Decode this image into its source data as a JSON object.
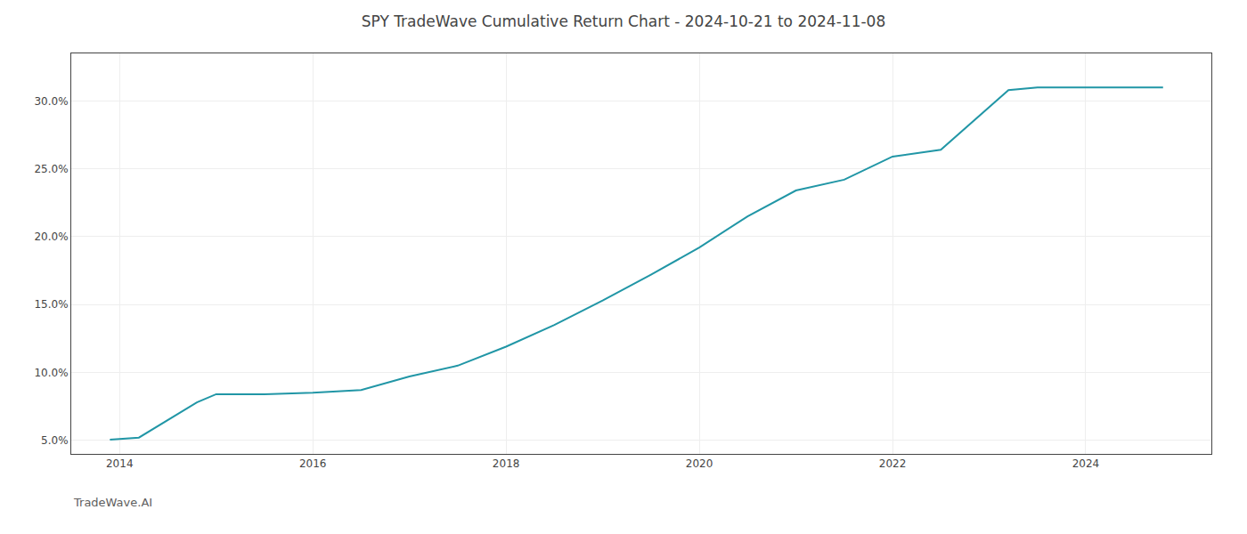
{
  "chart_data": {
    "type": "line",
    "title": "SPY TradeWave Cumulative Return Chart - 2024-10-21 to 2024-11-08",
    "annotations": [
      "TradeWave.AI"
    ],
    "x": [
      2013.9,
      2014.2,
      2014.8,
      2015.0,
      2015.5,
      2016.0,
      2016.5,
      2017.0,
      2017.5,
      2018.0,
      2018.5,
      2019.0,
      2019.5,
      2020.0,
      2020.5,
      2021.0,
      2021.5,
      2022.0,
      2022.5,
      2023.0,
      2023.2,
      2023.5,
      2024.0,
      2024.8
    ],
    "values": [
      5.05,
      5.2,
      7.8,
      8.4,
      8.4,
      8.5,
      8.7,
      9.7,
      10.5,
      11.9,
      13.5,
      15.3,
      17.2,
      19.2,
      21.5,
      23.4,
      24.2,
      25.9,
      26.4,
      29.5,
      30.8,
      31.0,
      31.0,
      31.0
    ],
    "color": "#2196a6",
    "xlim": [
      2013.5,
      2025.3
    ],
    "ylim": [
      4.0,
      33.5
    ],
    "xticks": [
      2014,
      2016,
      2018,
      2020,
      2022,
      2024
    ],
    "yticks": [
      {
        "value": 5.0,
        "label": "5.0%"
      },
      {
        "value": 10.0,
        "label": "10.0%"
      },
      {
        "value": 15.0,
        "label": "15.0%"
      },
      {
        "value": 20.0,
        "label": "20.0%"
      },
      {
        "value": 25.0,
        "label": "25.0%"
      },
      {
        "value": 30.0,
        "label": "30.0%"
      }
    ],
    "grid": true
  }
}
